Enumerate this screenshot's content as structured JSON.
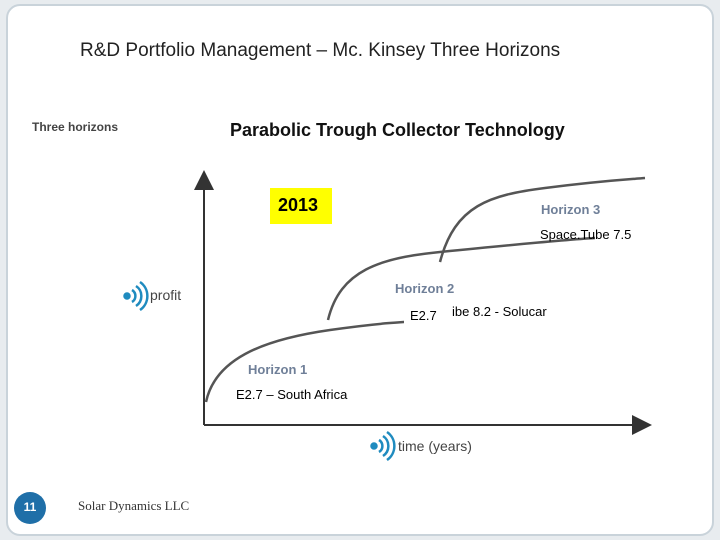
{
  "header": {
    "title": "R&D Portfolio Management – Mc. Kinsey Three Horizons"
  },
  "diagram": {
    "caption": "Three horizons",
    "subtitle": "Parabolic Trough Collector Technology",
    "year": "2013",
    "y_axis": "profit",
    "x_axis": "time (years)",
    "horizons": [
      {
        "label": "Horizon 1",
        "note": "E2.7 – South Africa"
      },
      {
        "label": "Horizon 2",
        "note": "E2.7",
        "note2": "ibe 8.2 - Solucar"
      },
      {
        "label": "Horizon 3",
        "note": "Space.Tube 7.5"
      }
    ]
  },
  "footer": {
    "page": "11",
    "company": "Solar Dynamics LLC"
  }
}
